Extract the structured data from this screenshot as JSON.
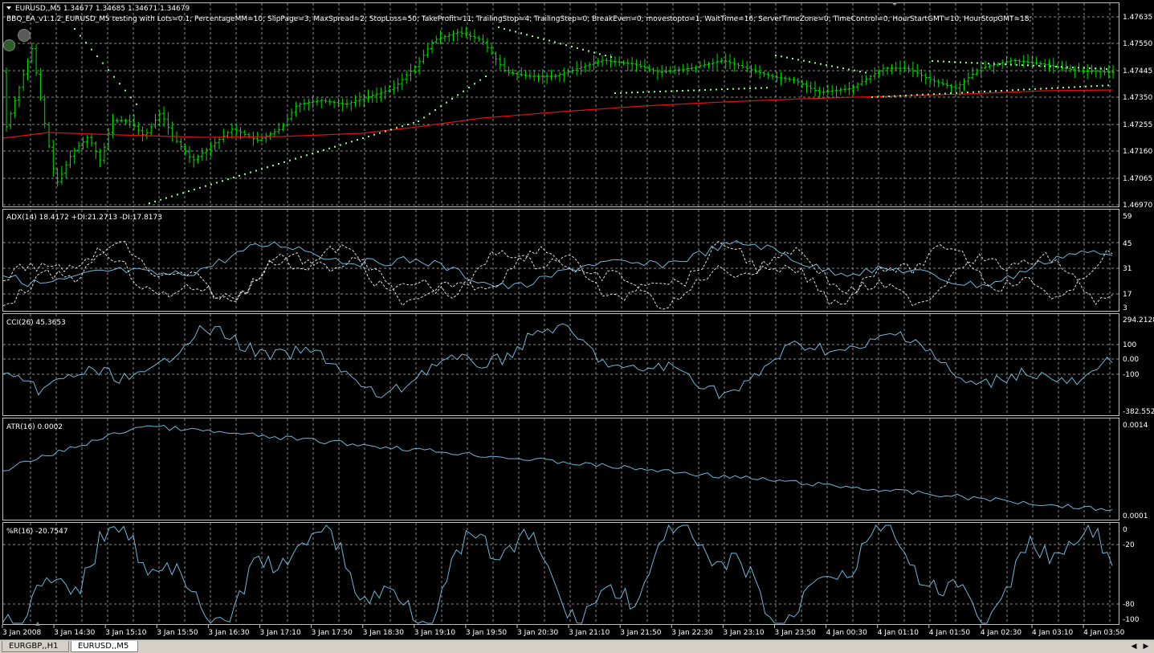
{
  "main": {
    "symbol_header": "EURUSD,,M5  1.34677 1.34685 1.34671 1.34679",
    "ea_label": "BBQ_EA_v1.1.2_EURUSD_M5 testing with Lots=0.1; PercentageMM=10; SlipPage=3; MaxSpread=2; StopLoss=50; TakeProfit=11; TrailingStop=4; TrailingStep=0; BreakEven=0; movestopto=1; WaitTime=16; ServerTimeZone=0; TimeControl=0; HourStartGMT=10; HourStopGMT=18;",
    "price_ticks": [
      "1.47635",
      "1.47550",
      "1.47445",
      "1.47350",
      "1.47255",
      "1.47160",
      "1.47065",
      "1.46970"
    ]
  },
  "adx": {
    "label": "ADX(14) 18.4172 +DI:21.2713 -DI:17.8173",
    "ticks": [
      "59",
      "45",
      "31",
      "17",
      "3"
    ]
  },
  "cci": {
    "label": "CCI(26) 45.3653",
    "ticks": [
      "294.2128",
      "100",
      "0.00",
      "-100",
      "-382.5525"
    ]
  },
  "atr": {
    "label": "ATR(16) 0.0002",
    "ticks": [
      "0.0014",
      "0.0001"
    ]
  },
  "wpr": {
    "label": "%R(16) -20.7547",
    "ticks": [
      "0",
      "-20",
      "-80",
      "-100"
    ]
  },
  "time_axis": [
    "3 Jan 2008",
    "3 Jan 14:30",
    "3 Jan 15:10",
    "3 Jan 15:50",
    "3 Jan 16:30",
    "3 Jan 17:10",
    "3 Jan 17:50",
    "3 Jan 18:30",
    "3 Jan 19:10",
    "3 Jan 19:50",
    "3 Jan 20:30",
    "3 Jan 21:10",
    "3 Jan 21:50",
    "3 Jan 22:30",
    "3 Jan 23:10",
    "3 Jan 23:50",
    "4 Jan 00:30",
    "4 Jan 01:10",
    "4 Jan 01:50",
    "4 Jan 02:30",
    "4 Jan 03:10",
    "4 Jan 03:50"
  ],
  "tabs": [
    {
      "label": "EURGBP,,H1"
    },
    {
      "label": "EURUSD,,M5"
    }
  ],
  "icons": {
    "left": "scroll-left-icon",
    "right": "scroll-right-icon"
  },
  "colors": {
    "candle": "#00ff00",
    "ma": "#ff0000",
    "indicator": "#6fb7d6",
    "grid": "#9a9a9a",
    "background": "#000000"
  }
}
